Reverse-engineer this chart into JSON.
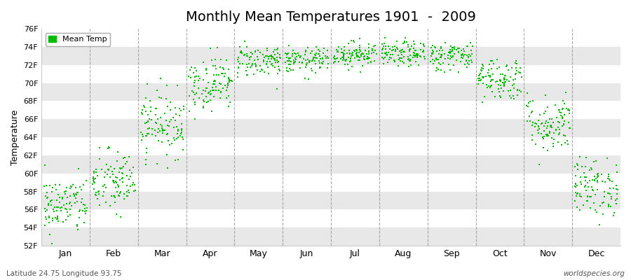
{
  "title": "Monthly Mean Temperatures 1901  -  2009",
  "ylabel": "Temperature",
  "subtitle_left": "Latitude 24.75 Longitude 93.75",
  "subtitle_right": "worldspecies.org",
  "legend_label": "Mean Temp",
  "months": [
    "Jan",
    "Feb",
    "Mar",
    "Apr",
    "May",
    "Jun",
    "Jul",
    "Aug",
    "Sep",
    "Oct",
    "Nov",
    "Dec"
  ],
  "ylim": [
    52,
    76
  ],
  "yticks": [
    52,
    54,
    56,
    58,
    60,
    62,
    64,
    66,
    68,
    70,
    72,
    74,
    76
  ],
  "ytick_labels": [
    "52F",
    "54F",
    "56F",
    "58F",
    "60F",
    "62F",
    "64F",
    "66F",
    "68F",
    "70F",
    "72F",
    "74F",
    "76F"
  ],
  "mean_temps": [
    56.5,
    59.0,
    65.5,
    70.0,
    72.5,
    72.5,
    73.2,
    73.2,
    73.0,
    70.5,
    65.5,
    58.5
  ],
  "std_temps": [
    1.6,
    1.8,
    1.8,
    1.5,
    0.9,
    0.7,
    0.7,
    0.7,
    0.8,
    1.2,
    1.6,
    1.6
  ],
  "n_years": 109,
  "dot_color": "#00bb00",
  "dot_size": 3,
  "bg_color": "#ffffff",
  "band_colors": [
    "#e8e8e8",
    "#ffffff"
  ],
  "dashed_line_color": "#888888",
  "title_fontsize": 14,
  "axis_fontsize": 8,
  "month_fontsize": 9
}
